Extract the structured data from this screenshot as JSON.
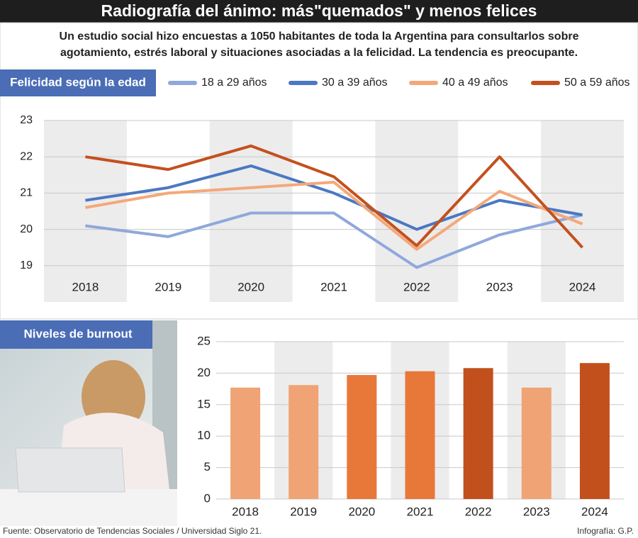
{
  "header": {
    "title": "Radiografía del ánimo: más\"quemados\" y menos felices",
    "subtitle": "Un estudio social hizo encuestas a 1050 habitantes de toda la Argentina para consultarlos sobre agotamiento, estrés laboral y situaciones asociadas a la felicidad. La tendencia es preocupante."
  },
  "chart_data": [
    {
      "type": "line",
      "title": "Felicidad según la edad",
      "categories": [
        "2018",
        "2019",
        "2020",
        "2021",
        "2022",
        "2023",
        "2024"
      ],
      "series": [
        {
          "name": "18 a 29 años",
          "color": "#8fa8dc",
          "values": [
            20.1,
            19.8,
            20.45,
            20.45,
            18.95,
            19.85,
            20.4
          ]
        },
        {
          "name": "30 a 39 años",
          "color": "#4a78c2",
          "values": [
            20.8,
            21.15,
            21.75,
            21.0,
            20.0,
            20.8,
            20.4
          ]
        },
        {
          "name": "40 a 49 años",
          "color": "#f4a87a",
          "values": [
            20.6,
            21.0,
            21.15,
            21.3,
            19.45,
            21.05,
            20.15
          ]
        },
        {
          "name": "50 a 59 años",
          "color": "#c4501e",
          "values": [
            22.0,
            21.65,
            22.3,
            21.45,
            19.55,
            22.0,
            19.5
          ]
        }
      ],
      "ylim": [
        18,
        23
      ],
      "yticks": [
        19,
        20,
        21,
        22,
        23
      ],
      "grid": true
    },
    {
      "type": "bar",
      "title": "Niveles de burnout",
      "categories": [
        "2018",
        "2019",
        "2020",
        "2021",
        "2022",
        "2023",
        "2024"
      ],
      "values": [
        17.7,
        18.1,
        19.7,
        20.3,
        20.8,
        17.7,
        21.6
      ],
      "colors": [
        "#f0a374",
        "#f0a374",
        "#e8773a",
        "#e8773a",
        "#c2501c",
        "#f0a374",
        "#c2501c"
      ],
      "ylim": [
        0,
        25
      ],
      "yticks": [
        0,
        5,
        10,
        15,
        20,
        25
      ],
      "grid": true
    }
  ],
  "footer": {
    "source": "Fuente: Observatorio de Tendencias Sociales / Universidad Siglo 21.",
    "credit": "Infografía: G.P."
  }
}
